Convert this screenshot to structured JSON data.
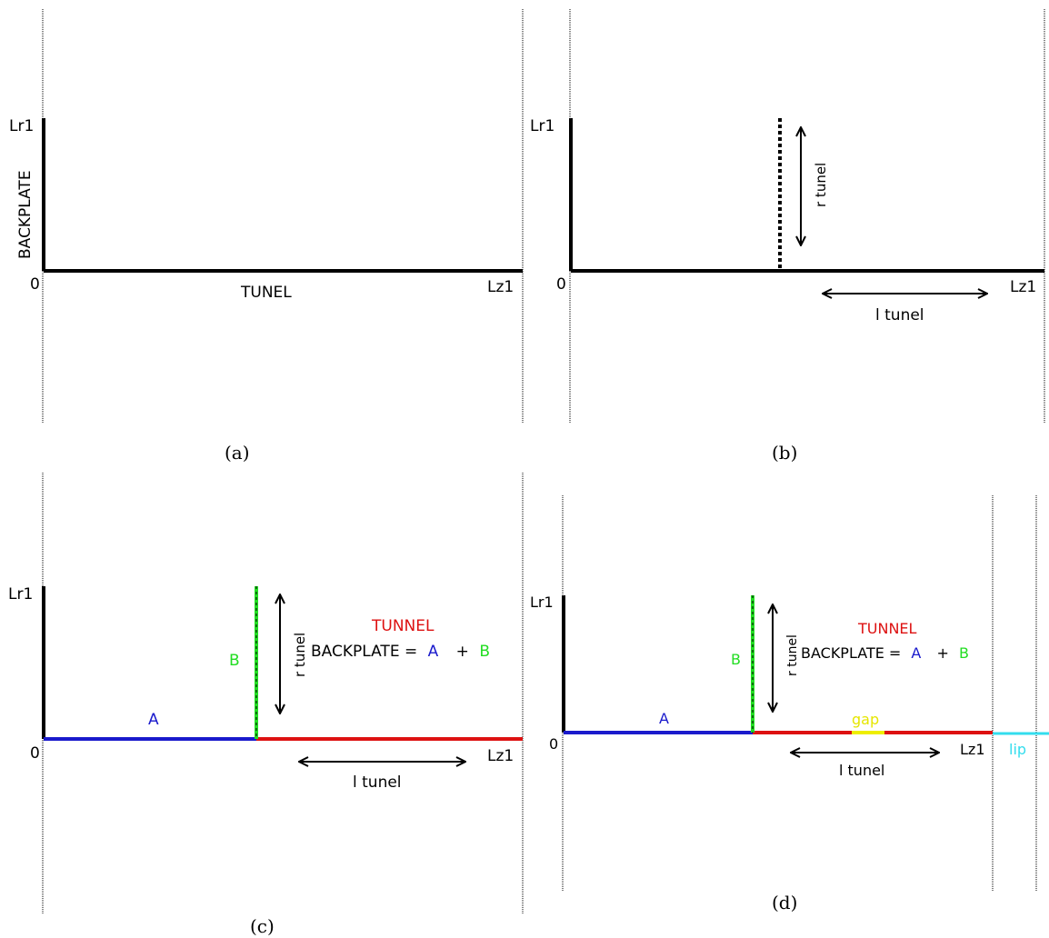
{
  "panels": {
    "a": {
      "caption": "(a)",
      "labels": {
        "lr1": "Lr1",
        "origin": "0",
        "lz1": "Lz1",
        "backplate": "BACKPLATE",
        "tunel": "TUNEL"
      }
    },
    "b": {
      "caption": "(b)",
      "labels": {
        "lr1": "Lr1",
        "origin": "0",
        "lz1": "Lz1",
        "r_tunel": "r tunel",
        "l_tunel": "l tunel"
      }
    },
    "c": {
      "caption": "(c)",
      "labels": {
        "lr1": "Lr1",
        "origin": "0",
        "lz1": "Lz1",
        "a": "A",
        "b": "B",
        "r_tunel": "r tunel",
        "l_tunel": "l tunel",
        "tunnel": "TUNNEL",
        "backplate_eq": "BACKPLATE =",
        "eq_a": "A",
        "eq_plus": "+",
        "eq_b": "B"
      }
    },
    "d": {
      "caption": "(d)",
      "labels": {
        "lr1": "Lr1",
        "origin": "0",
        "lz1": "Lz1",
        "a": "A",
        "b": "B",
        "r_tunel": "r tunel",
        "l_tunel": "l tunel",
        "tunnel": "TUNNEL",
        "backplate_eq": "BACKPLATE =",
        "eq_a": "A",
        "eq_plus": "+",
        "eq_b": "B",
        "gap": "gap",
        "lip": "lip"
      }
    }
  },
  "colors": {
    "black": "#000000",
    "segment_a": "#1a1acc",
    "segment_b": "#22dd22",
    "tunnel": "#dd1111",
    "gap": "#eeee00",
    "lip": "#33ddee"
  }
}
